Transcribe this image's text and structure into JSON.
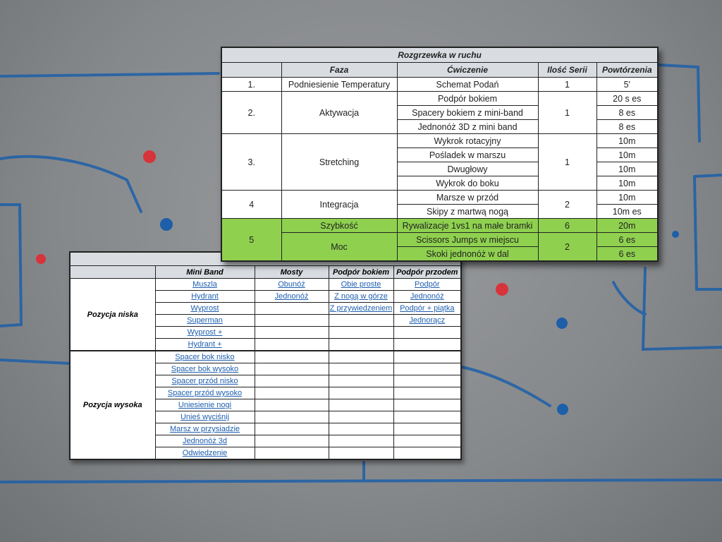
{
  "warmup_table": {
    "title": "Rozgrzewka w ruchu",
    "headers": [
      "",
      "Faza",
      "Ćwiczenie",
      "Ilość Serii",
      "Powtórzenia"
    ],
    "highlight_color": "#8fd14f",
    "groups": [
      {
        "num": "1.",
        "phases": [
          {
            "name": "Podniesienie Temperatury",
            "series": "1",
            "exercises": [
              {
                "name": "Schemat Podań",
                "reps": "5'"
              }
            ]
          }
        ]
      },
      {
        "num": "2.",
        "phases": [
          {
            "name": "Aktywacja",
            "series": "1",
            "exercises": [
              {
                "name": "Podpór bokiem",
                "reps": "20 s es"
              },
              {
                "name": "Spacery bokiem z mini-band",
                "reps": "8 es"
              },
              {
                "name": "Jednonóż 3D z mini band",
                "reps": "8 es"
              }
            ]
          }
        ]
      },
      {
        "num": "3.",
        "phases": [
          {
            "name": "Stretching",
            "series": "1",
            "exercises": [
              {
                "name": "Wykrok rotacyjny",
                "reps": "10m"
              },
              {
                "name": "Pośladek w marszu",
                "reps": "10m"
              },
              {
                "name": "Dwugłowy",
                "reps": "10m"
              },
              {
                "name": "Wykrok do boku",
                "reps": "10m"
              }
            ]
          }
        ]
      },
      {
        "num": "4",
        "phases": [
          {
            "name": "Integracja",
            "series": "2",
            "exercises": [
              {
                "name": "Marsze w przód",
                "reps": "10m"
              },
              {
                "name": "Skipy z martwą nogą",
                "reps": "10m es"
              }
            ]
          }
        ]
      },
      {
        "num": "5",
        "highlight": true,
        "phases": [
          {
            "name": "Szybkość",
            "series": "6",
            "exercises": [
              {
                "name": "Rywalizacje  1vs1 na małe bramki",
                "reps": "20m"
              }
            ]
          },
          {
            "name": "Moc",
            "series": "2",
            "exercises": [
              {
                "name": "Scissors Jumps w miejscu",
                "reps": "6 es"
              },
              {
                "name": "Skoki jednonóż w dal",
                "reps": "6 es"
              }
            ]
          }
        ]
      }
    ]
  },
  "exercise_table": {
    "headers": [
      "",
      "Mini Band",
      "Mosty",
      "Podpór bokiem",
      "Podpór przodem"
    ],
    "sections": [
      {
        "label": "Pozycja niska",
        "rows": [
          [
            "Muszla",
            "Obunóż",
            "Obie proste",
            "Podpór"
          ],
          [
            "Hydrant",
            "Jednonóż",
            "Z nogą w górze",
            "Jednonóż"
          ],
          [
            "Wyprost",
            "",
            "Z przywiedzeniem",
            "Podpór + piątka"
          ],
          [
            "Superman",
            "",
            "",
            "Jednorącz"
          ],
          [
            "Wyprost +",
            "",
            "",
            ""
          ],
          [
            "Hydrant +",
            "",
            "",
            ""
          ]
        ]
      },
      {
        "label": "Pozycja wysoka",
        "rows": [
          [
            "Spacer bok nisko",
            "",
            "",
            ""
          ],
          [
            "Spacer bok wysoko",
            "",
            "",
            ""
          ],
          [
            "Spacer przód nisko",
            "",
            "",
            ""
          ],
          [
            "Spacer przód wysoko",
            "",
            "",
            ""
          ],
          [
            "Uniesienie nogi",
            "",
            "",
            ""
          ],
          [
            "Unieś wyciśnij",
            "",
            "",
            ""
          ],
          [
            "Marsz w przysiadzie",
            "",
            "",
            ""
          ],
          [
            "Jednonóż 3d",
            "",
            "",
            ""
          ],
          [
            "Odwiedzenie",
            "",
            "",
            ""
          ]
        ]
      }
    ]
  }
}
